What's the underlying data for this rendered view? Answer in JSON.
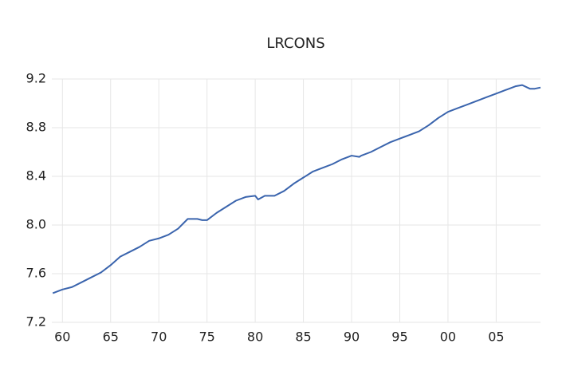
{
  "chart_data": {
    "type": "line",
    "title": "LRCONS",
    "x": [
      1959,
      1960,
      1961,
      1962,
      1963,
      1964,
      1965,
      1966,
      1967,
      1968,
      1969,
      1970,
      1971,
      1972,
      1973,
      1974,
      1974.5,
      1975,
      1976,
      1977,
      1978,
      1979,
      1980,
      1980.3,
      1981,
      1982,
      1983,
      1984,
      1985,
      1986,
      1987,
      1988,
      1989,
      1990,
      1990.8,
      1991,
      1992,
      1993,
      1994,
      1995,
      1996,
      1997,
      1998,
      1999,
      2000,
      2001,
      2002,
      2003,
      2004,
      2005,
      2006,
      2007,
      2007.7,
      2008.5,
      2009,
      2009.6
    ],
    "series": [
      {
        "name": "LRCONS",
        "color": "#3a64ad",
        "values": [
          7.44,
          7.47,
          7.49,
          7.53,
          7.57,
          7.61,
          7.67,
          7.74,
          7.78,
          7.82,
          7.87,
          7.89,
          7.92,
          7.97,
          8.05,
          8.05,
          8.04,
          8.04,
          8.1,
          8.15,
          8.2,
          8.23,
          8.24,
          8.21,
          8.24,
          8.24,
          8.28,
          8.34,
          8.39,
          8.44,
          8.47,
          8.5,
          8.54,
          8.57,
          8.56,
          8.57,
          8.6,
          8.64,
          8.68,
          8.71,
          8.74,
          8.77,
          8.82,
          8.88,
          8.93,
          8.96,
          8.99,
          9.02,
          9.05,
          9.08,
          9.11,
          9.14,
          9.15,
          9.12,
          9.12,
          9.13
        ]
      }
    ],
    "xlim": [
      1958.9,
      2009.6
    ],
    "xticks": [
      {
        "value": 1960,
        "label": "60"
      },
      {
        "value": 1965,
        "label": "65"
      },
      {
        "value": 1970,
        "label": "70"
      },
      {
        "value": 1975,
        "label": "75"
      },
      {
        "value": 1980,
        "label": "80"
      },
      {
        "value": 1985,
        "label": "85"
      },
      {
        "value": 1990,
        "label": "90"
      },
      {
        "value": 1995,
        "label": "95"
      },
      {
        "value": 2000,
        "label": "00"
      },
      {
        "value": 2005,
        "label": "05"
      }
    ],
    "ylim": [
      7.2,
      9.2
    ],
    "yticks": [
      7.2,
      7.6,
      {
        "value": 8,
        "label": "8.0"
      },
      8.4,
      8.8,
      9.2
    ],
    "grid": true
  }
}
